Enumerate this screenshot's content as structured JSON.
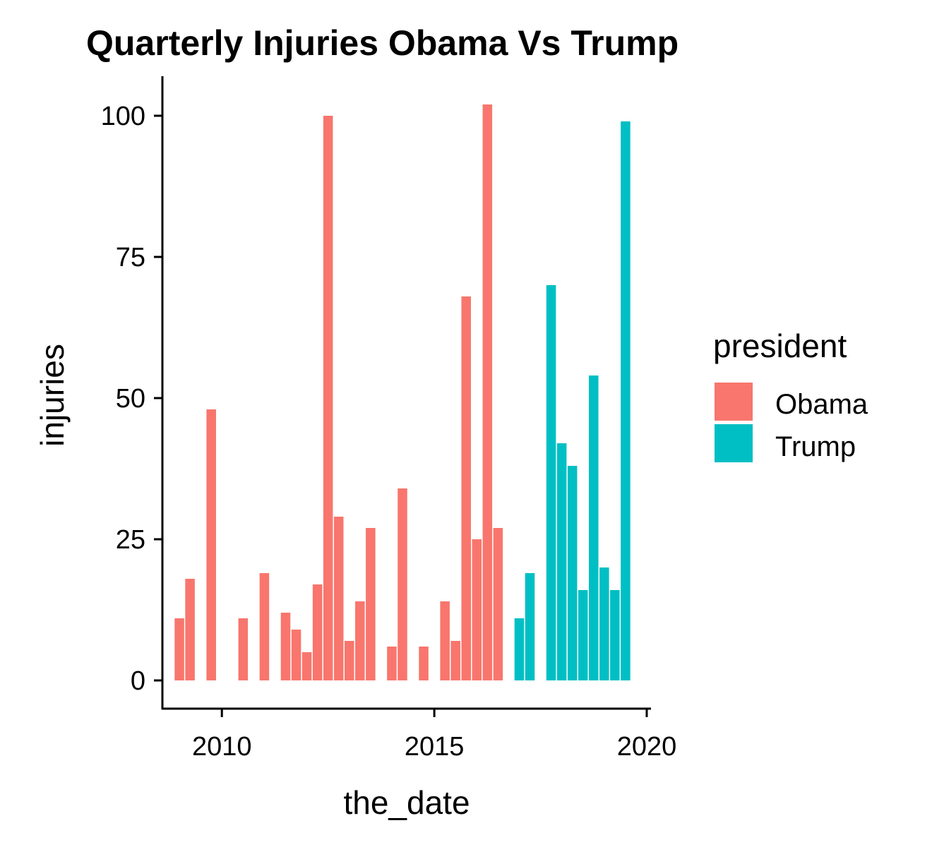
{
  "chart_data": {
    "type": "bar",
    "title": "Quarterly Injuries Obama Vs Trump",
    "xlabel": "the_date",
    "ylabel": "injuries",
    "xlim": [
      2008.6,
      2020.1
    ],
    "ylim": [
      -5,
      107
    ],
    "x_ticks": [
      2010,
      2015,
      2020
    ],
    "x_tick_labels": [
      "2010",
      "2015",
      "2020"
    ],
    "y_ticks": [
      0,
      25,
      50,
      75,
      100
    ],
    "y_tick_labels": [
      "0",
      "25",
      "50",
      "75",
      "100"
    ],
    "grid": false,
    "legend": {
      "title": "president",
      "position": "right",
      "entries": [
        {
          "name": "Obama",
          "color": "#F8766D"
        },
        {
          "name": "Trump",
          "color": "#00BFC4"
        }
      ]
    },
    "series": [
      {
        "name": "Obama",
        "color": "#F8766D",
        "x": [
          "2009-01-01",
          "2009-04-01",
          "2009-10-01",
          "2010-07-01",
          "2011-01-01",
          "2011-07-01",
          "2011-10-01",
          "2012-01-01",
          "2012-04-01",
          "2012-07-01",
          "2012-10-01",
          "2013-01-01",
          "2013-04-01",
          "2013-07-01",
          "2014-01-01",
          "2014-04-01",
          "2014-10-01",
          "2015-04-01",
          "2015-07-01",
          "2015-10-01",
          "2016-01-01",
          "2016-04-01",
          "2016-07-01"
        ],
        "values": [
          11,
          18,
          48,
          11,
          19,
          12,
          9,
          5,
          17,
          100,
          29,
          7,
          14,
          27,
          6,
          34,
          6,
          14,
          7,
          68,
          25,
          102,
          27
        ]
      },
      {
        "name": "Trump",
        "color": "#00BFC4",
        "x": [
          "2017-01-01",
          "2017-04-01",
          "2017-10-01",
          "2018-01-01",
          "2018-04-01",
          "2018-07-01",
          "2018-10-01",
          "2019-01-01",
          "2019-04-01",
          "2019-07-01"
        ],
        "values": [
          11,
          19,
          70,
          42,
          38,
          16,
          54,
          20,
          16,
          99
        ]
      }
    ]
  }
}
